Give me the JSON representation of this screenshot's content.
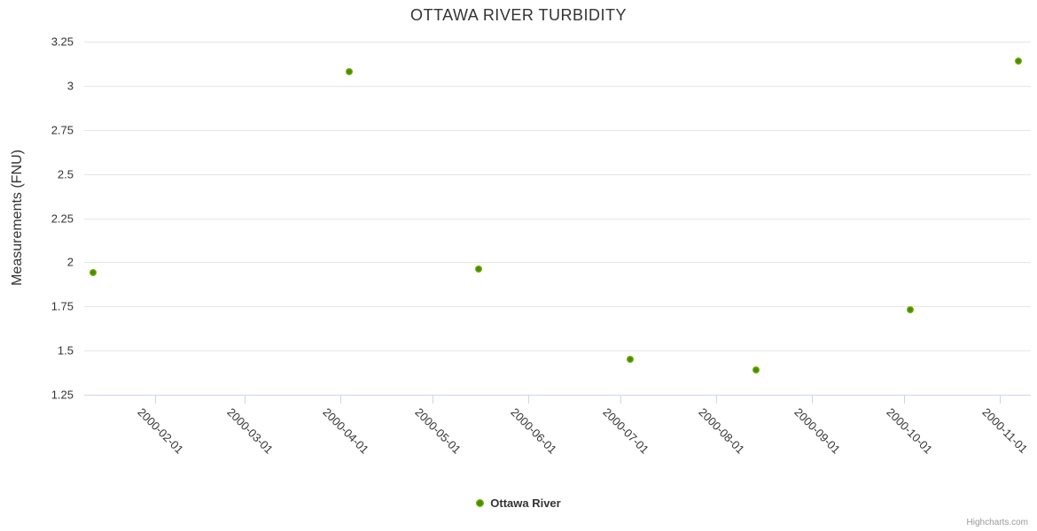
{
  "title": "OTTAWA RIVER TURBIDITY",
  "y_axis_title": "Measurements (FNU)",
  "legend": {
    "label": "Ottawa River"
  },
  "credits": "Highcharts.com",
  "colors": {
    "marker_center": "#4a8a00",
    "marker_fill": "#6fb200",
    "marker_edge": "#8cc63f",
    "grid_line": "#e6e6e6",
    "axis_line": "#ccd6eb",
    "label_text": "#333333",
    "credits_text": "#999999"
  },
  "chart_data": {
    "type": "scatter",
    "title": "OTTAWA RIVER TURBIDITY",
    "xlabel": "",
    "ylabel": "Measurements (FNU)",
    "legend_position": "bottom-center",
    "grid": true,
    "ylim": [
      1.25,
      3.25
    ],
    "y_tick_step": 0.25,
    "y_tick_labels": [
      "3.25",
      "3",
      "2.75",
      "2.5",
      "2.25",
      "2",
      "1.75",
      "1.5",
      "1.25"
    ],
    "x_range": [
      "2000-01-09",
      "2000-11-11"
    ],
    "x_tick_labels": [
      "2000-02-01",
      "2000-03-01",
      "2000-04-01",
      "2000-05-01",
      "2000-06-01",
      "2000-07-01",
      "2000-08-01",
      "2000-09-01",
      "2000-10-01",
      "2000-11-01"
    ],
    "series": [
      {
        "name": "Ottawa River",
        "points": [
          {
            "date": "2000-01-12",
            "value": 1.94
          },
          {
            "date": "2000-04-04",
            "value": 3.08
          },
          {
            "date": "2000-05-16",
            "value": 1.96
          },
          {
            "date": "2000-07-04",
            "value": 1.45
          },
          {
            "date": "2000-08-14",
            "value": 1.39
          },
          {
            "date": "2000-10-03",
            "value": 1.73
          },
          {
            "date": "2000-11-07",
            "value": 3.14
          }
        ]
      }
    ]
  }
}
